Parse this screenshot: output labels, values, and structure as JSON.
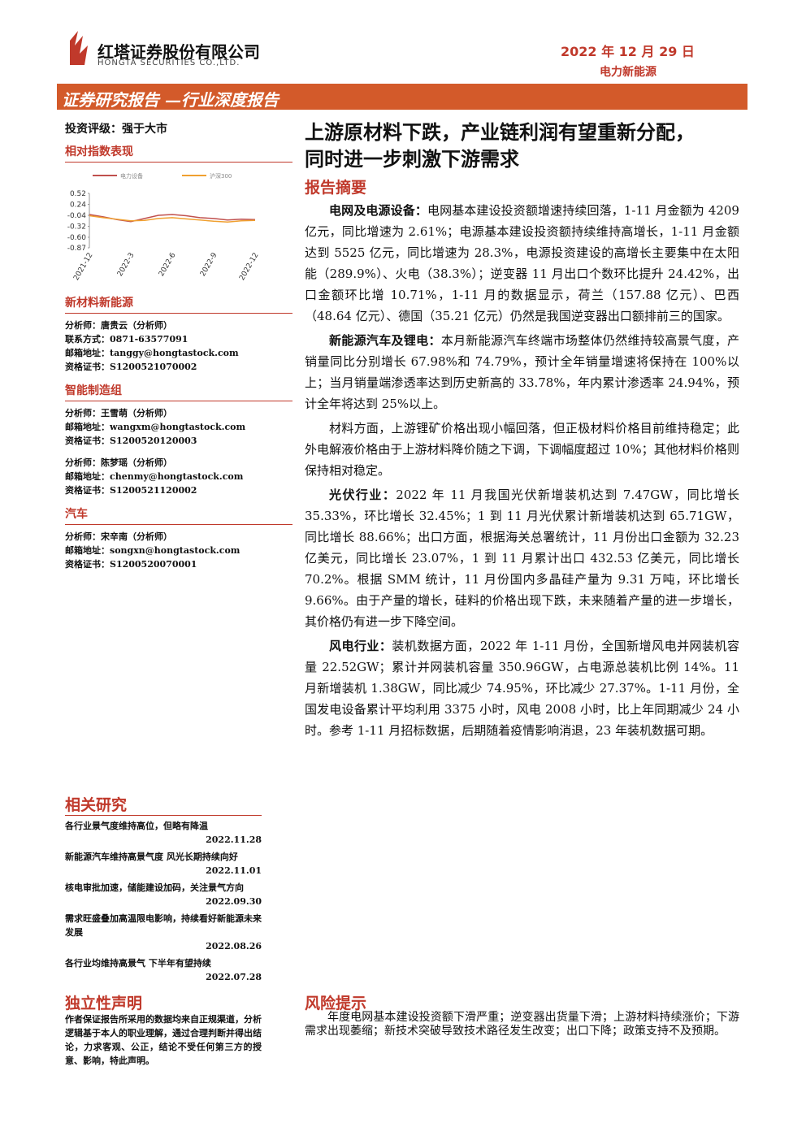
{
  "header": {
    "company_cn": "红塔证券股份有限公司",
    "company_en": "HONGTA SECURITIES CO.,LTD.",
    "date": "2022 年 12 月 29 日",
    "sector": "电力新能源"
  },
  "banner": "证券研究报告 —行业深度报告",
  "rating": "投资评级：强于大市",
  "chart_heading": "相对指数表现",
  "chart_data": {
    "type": "line",
    "categories": [
      "2021-12",
      null,
      null,
      "2022-3",
      null,
      null,
      "2022-6",
      null,
      null,
      "2022-9",
      null,
      null,
      "2022-12"
    ],
    "series": [
      {
        "name": "电力设备",
        "color": "#c0504d",
        "values": [
          -0.02,
          -0.08,
          -0.15,
          -0.2,
          -0.12,
          -0.04,
          -0.02,
          -0.05,
          -0.1,
          -0.12,
          -0.16,
          -0.14,
          -0.15
        ]
      },
      {
        "name": "沪深300",
        "color": "#f0a030",
        "values": [
          -0.05,
          -0.1,
          -0.14,
          -0.18,
          -0.17,
          -0.12,
          -0.1,
          -0.13,
          -0.16,
          -0.19,
          -0.21,
          -0.18,
          -0.17
        ]
      }
    ],
    "ylim": [
      -0.87,
      0.52
    ],
    "yticks": [
      0.52,
      0.24,
      -0.04,
      -0.32,
      {
        "value": -0.6,
        "label": "-0.60"
      },
      -0.87
    ]
  },
  "groups": [
    {
      "title": "新材料新能源",
      "lines": [
        "分析师：唐贵云（分析师）",
        "联系方式：0871-63577091",
        "邮箱地址：tanggy@hongtastock.com",
        "资格证书：S1200521070002"
      ]
    },
    {
      "title": "智能制造组",
      "lines": [
        "分析师：王雪萌（分析师）",
        "邮箱地址：wangxm@hongtastock.com",
        "资格证书：S1200520120003",
        "分析师：陈梦瑶（分析师）",
        "邮箱地址：chenmy@hongtastock.com",
        "资格证书：S1200521120002"
      ]
    },
    {
      "title": "汽车",
      "lines": [
        "分析师：宋辛南（分析师）",
        "邮箱地址：songxn@hongtastock.com",
        "资格证书：S1200520070001"
      ]
    }
  ],
  "headline": [
    "上游原材料下跌，产业链利润有望重新分配，",
    "同时进一步刺激下游需求"
  ],
  "summary_heading": "报告摘要",
  "paragraphs": [
    {
      "lead": "电网及电源设备：",
      "text": "电网基本建设投资额增速持续回落，1-11 月金额为 4209 亿元，同比增速为 2.61%；电源基本建设投资额持续维持高增长，1-11 月金额达到 5525 亿元，同比增速为 28.3%，电源投资建设的高增长主要集中在太阳能（289.9%）、火电（38.3%）；逆变器 11 月出口个数环比提升 24.42%，出口金额环比增 10.71%，1-11 月的数据显示，荷兰（157.88 亿元）、巴西（48.64 亿元）、德国（35.21 亿元）仍然是我国逆变器出口额排前三的国家。"
    },
    {
      "lead": "新能源汽车及锂电：",
      "text": "本月新能源汽车终端市场整体仍然维持较高景气度，产销量同比分别增长 67.98%和 74.79%，预计全年销量增速将保持在 100%以上；当月销量端渗透率达到历史新高的 33.78%，年内累计渗透率 24.94%，预计全年将达到 25%以上。"
    },
    {
      "text": "材料方面，上游锂矿价格出现小幅回落，但正极材料价格目前维持稳定；此外电解液价格由于上游材料降价随之下调，下调幅度超过 10%；其他材料价格则保持相对稳定。"
    },
    {
      "lead": "光伏行业：",
      "text": "2022 年 11 月我国光伏新增装机达到 7.47GW，同比增长 35.33%，环比增长 32.45%；1 到 11 月光伏累计新增装机达到 65.71GW，同比增长 88.66%；出口方面，根据海关总署统计，11 月份出口金额为 32.23 亿美元，同比增长 23.07%，1 到 11 月累计出口 432.53 亿美元，同比增长 70.2%。根据 SMM 统计，11 月份国内多晶硅产量为 9.31 万吨，环比增长 9.66%。由于产量的增长，硅料的价格出现下跌，未来随着产量的进一步增长，其价格仍有进一步下降空间。"
    },
    {
      "lead": "风电行业：",
      "text": "装机数据方面，2022 年 1-11 月份，全国新增风电并网装机容量 22.52GW；累计并网装机容量 350.96GW，占电源总装机比例 14%。11 月新增装机 1.38GW，同比减少 74.95%，环比减少 27.37%。1-11 月份，全国发电设备累计平均利用 3375 小时，风电 2008 小时，比上年同期减少 24 小时。参考 1-11 月招标数据，后期随着疫情影响消退，23 年装机数据可期。"
    }
  ],
  "related": {
    "title": "相关研究",
    "items": [
      {
        "title": "各行业景气度维持高位，但略有降温",
        "date": "2022.11.28"
      },
      {
        "title": "新能源汽车维持高景气度 风光长期持续向好",
        "date": "2022.11.01"
      },
      {
        "title": "核电审批加速，储能建设加码，关注景气方向",
        "date": "2022.09.30"
      },
      {
        "title": "需求旺盛叠加高温限电影响，持续看好新能源未来发展",
        "date": "2022.08.26"
      },
      {
        "title": "各行业均维持高景气 下半年有望持续",
        "date": "2022.07.28"
      }
    ]
  },
  "independence": {
    "title": "独立性声明",
    "text": "作者保证报告所采用的数据均来自正规渠道，分析逻辑基于本人的职业理解，通过合理判断并得出结论，力求客观、公正，结论不受任何第三方的授意、影响，特此声明。"
  },
  "risk": {
    "title": "风险提示",
    "text": "年度电网基本建设投资额下滑严重；逆变器出货量下滑；上游材料持续涨价；下游需求出现萎缩；新技术突破导致技术路径发生改变；出口下降；政策支持不及预期。"
  }
}
